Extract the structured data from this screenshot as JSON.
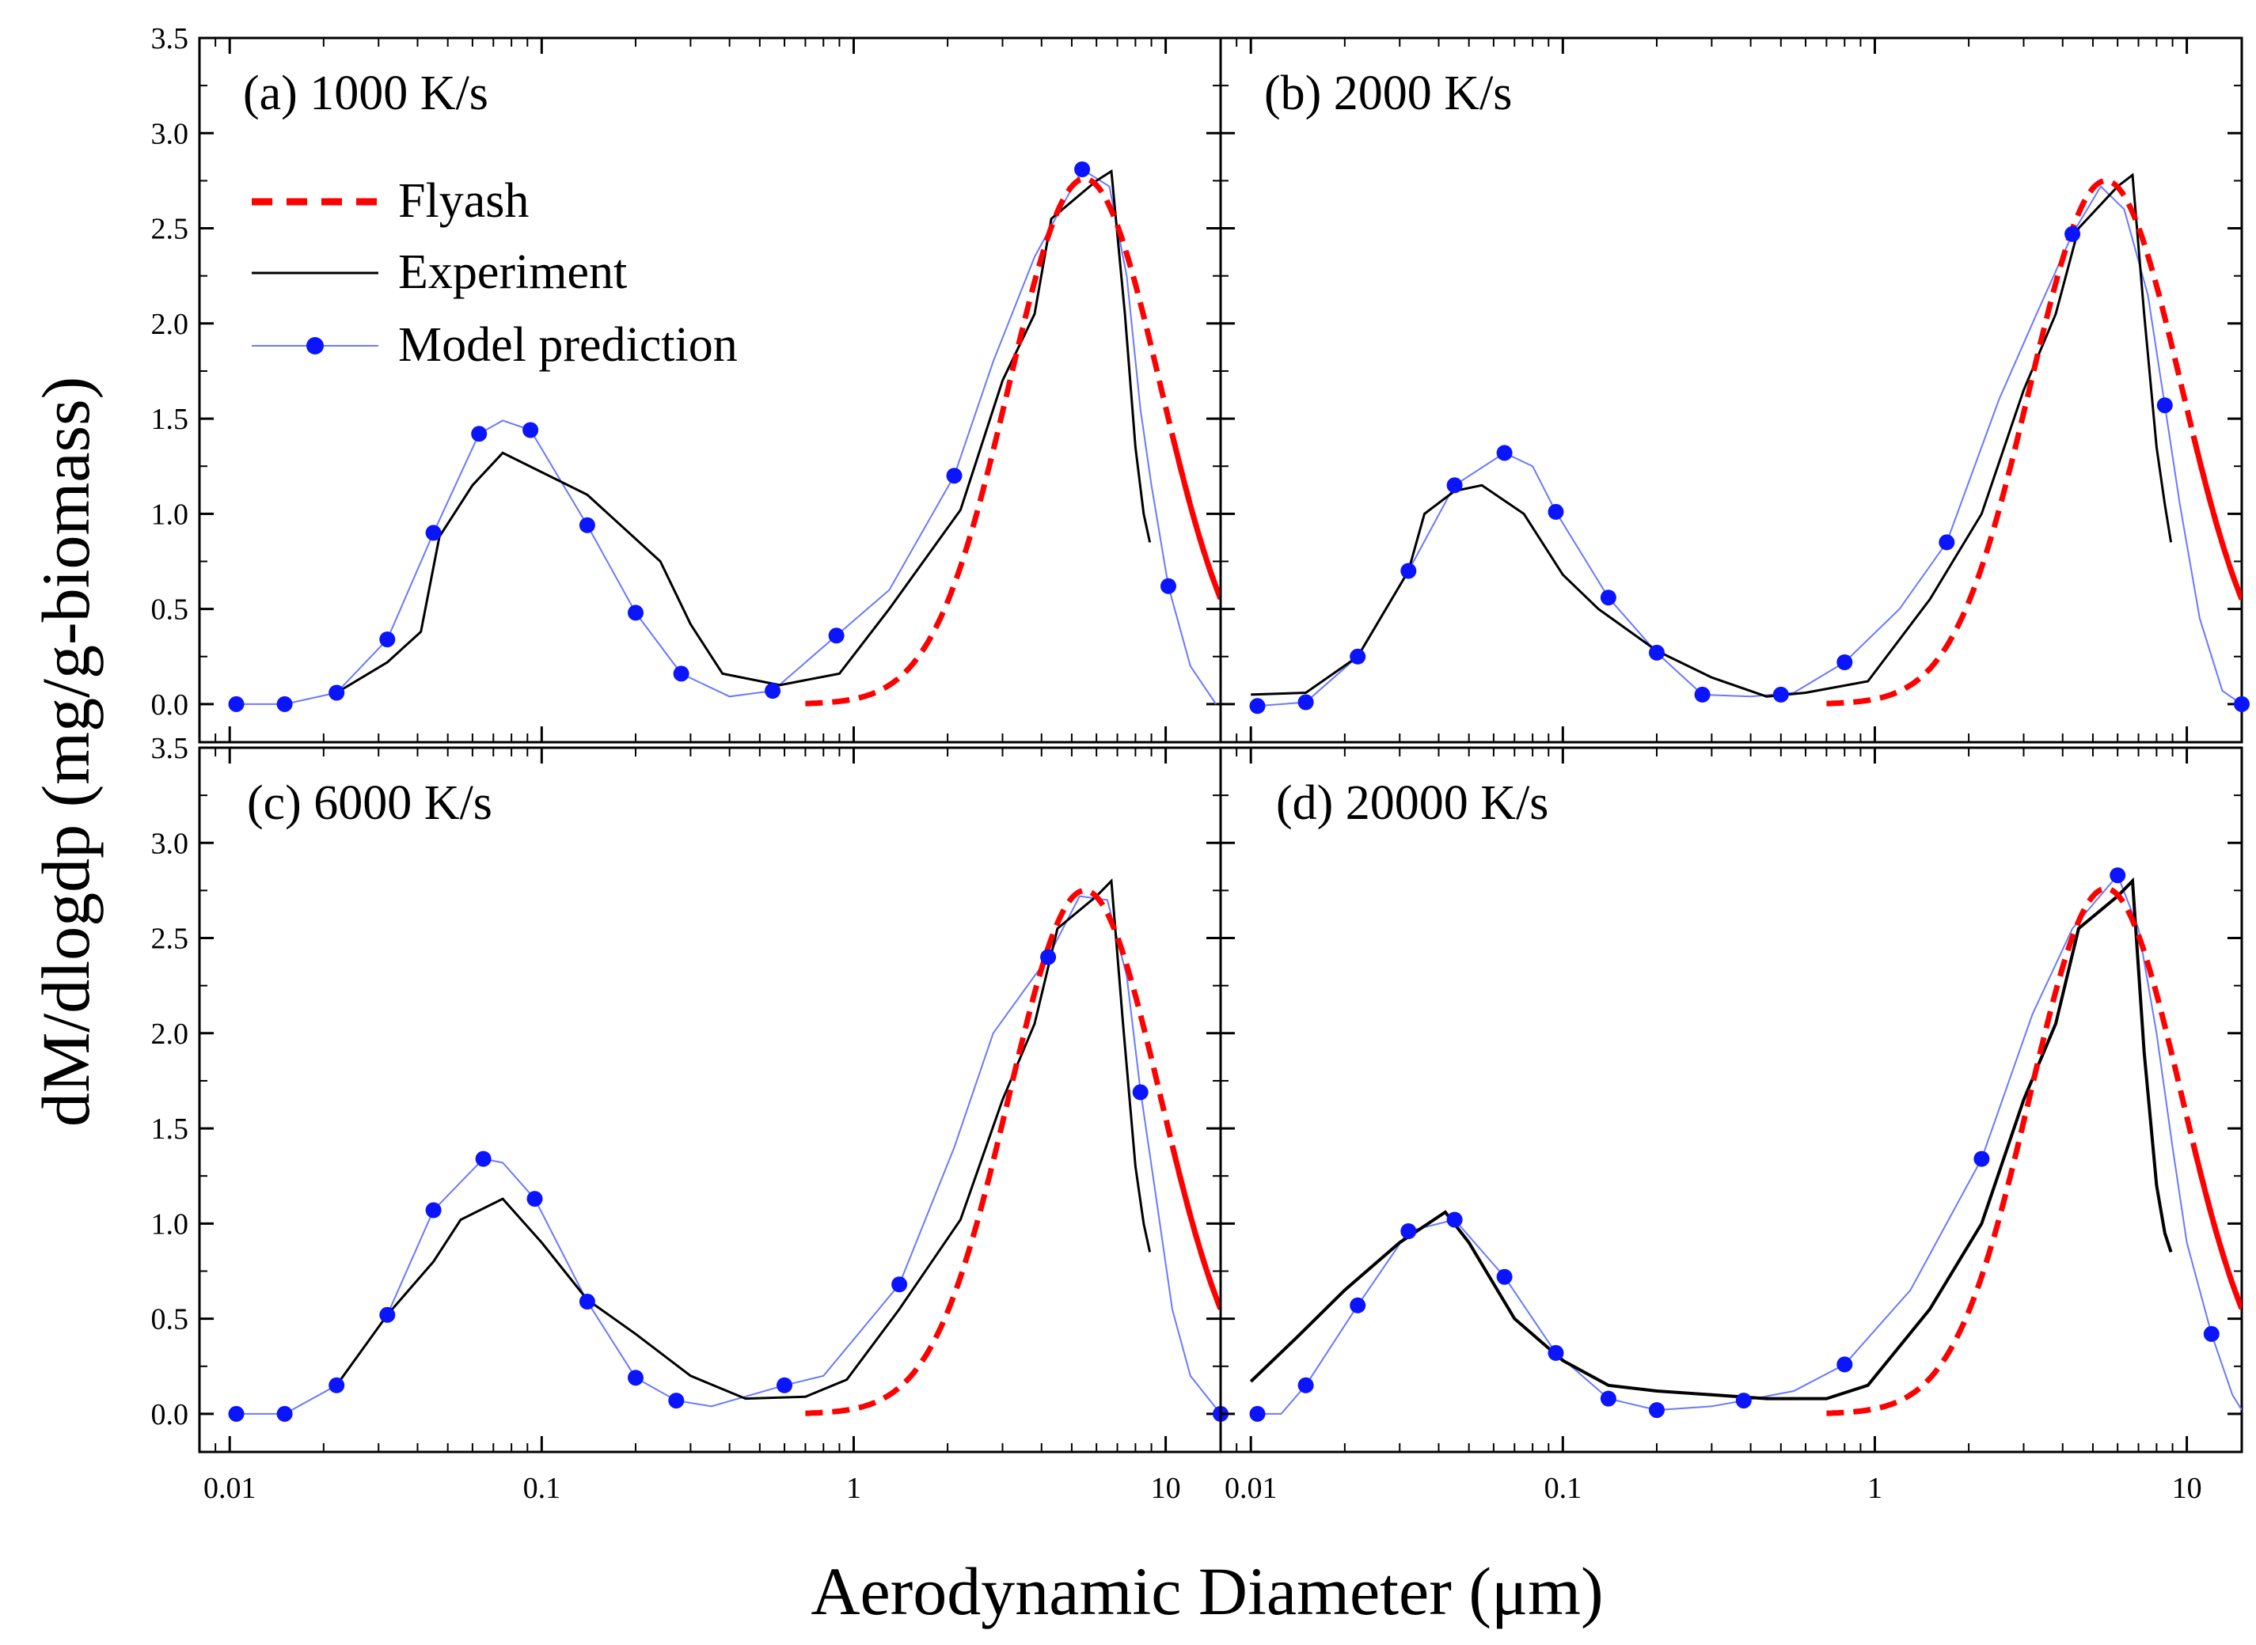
{
  "figure": {
    "xlabel": "Aerodynamic Diameter (μm)",
    "ylabel": "dM/dlogdp (mg/g-biomass)",
    "legend": {
      "location": "top-left of panel (a)",
      "entries": [
        {
          "label": "Flyash",
          "style": "dashed",
          "color": "#ff0000"
        },
        {
          "label": "Experiment",
          "style": "solid",
          "color": "#000000"
        },
        {
          "label": "Model prediction",
          "style": "line+marker",
          "color": "#0000ff"
        }
      ]
    },
    "colors": {
      "flyash": "#ff0000",
      "experiment": "#000000",
      "model_line": "#6a79ff",
      "model_marker": "#0a14ff"
    }
  },
  "chart_data": [
    {
      "type": "line",
      "title": "(a) 1000 K/s",
      "xscale": "log",
      "xlim": [
        0.008,
        15
      ],
      "ylim": [
        -0.2,
        3.5
      ],
      "xticks": [
        0.01,
        0.1,
        1,
        10
      ],
      "xtick_labels": [
        "0.01",
        "0.1",
        "1",
        "10"
      ],
      "yticks": [
        0,
        0.5,
        1,
        1.5,
        2,
        2.5,
        3,
        3.5
      ],
      "ytick_labels": [
        "0.0",
        "0.5",
        "1.0",
        "1.5",
        "2.0",
        "2.5",
        "3.0",
        "3.5"
      ],
      "series": [
        {
          "name": "Experiment",
          "x": [
            0.022,
            0.032,
            0.041,
            0.047,
            0.06,
            0.075,
            0.14,
            0.24,
            0.3,
            0.38,
            0.58,
            0.9,
            1.3,
            2.2,
            3.0,
            3.8,
            4.3,
            6.0,
            6.7,
            7.4,
            8.0,
            8.5,
            8.9
          ],
          "y": [
            0.06,
            0.22,
            0.38,
            0.88,
            1.15,
            1.32,
            1.1,
            0.75,
            0.42,
            0.16,
            0.1,
            0.16,
            0.5,
            1.02,
            1.7,
            2.05,
            2.55,
            2.75,
            2.8,
            2.05,
            1.35,
            1.0,
            0.85
          ]
        },
        {
          "name": "Model prediction",
          "x": [
            0.0105,
            0.015,
            0.022,
            0.032,
            0.045,
            0.063,
            0.075,
            0.092,
            0.14,
            0.2,
            0.28,
            0.4,
            0.55,
            0.88,
            1.3,
            2.1,
            2.8,
            3.8,
            5.4,
            6.6,
            7.5,
            8.3,
            9.0,
            10.2,
            12.0,
            14.5
          ],
          "y": [
            0.0,
            0.0,
            0.06,
            0.34,
            0.9,
            1.42,
            1.49,
            1.44,
            0.94,
            0.48,
            0.16,
            0.04,
            0.07,
            0.36,
            0.6,
            1.2,
            1.8,
            2.35,
            2.81,
            2.72,
            2.25,
            1.55,
            1.15,
            0.62,
            0.2,
            0.0
          ],
          "markers": {
            "x": [
              0.0105,
              0.015,
              0.022,
              0.032,
              0.045,
              0.063,
              0.092,
              0.14,
              0.2,
              0.28,
              0.55,
              0.88,
              2.1,
              5.4,
              10.2
            ],
            "y": [
              0.0,
              0.0,
              0.06,
              0.34,
              0.9,
              1.42,
              1.44,
              0.94,
              0.48,
              0.16,
              0.07,
              0.36,
              1.2,
              2.81,
              0.62
            ]
          }
        },
        {
          "name": "Flyash",
          "mu": 5.5,
          "sigma_g": 1.75,
          "peak": 2.76,
          "x_start": 0.7,
          "x_end": 15
        }
      ]
    },
    {
      "type": "line",
      "title": "(b) 2000 K/s",
      "xscale": "log",
      "xlim": [
        0.008,
        15
      ],
      "ylim": [
        -0.2,
        3.5
      ],
      "xticks": [
        0.01,
        0.1,
        1,
        10
      ],
      "xtick_labels": [
        "0.01",
        "0.1",
        "1",
        "10"
      ],
      "yticks": [
        0,
        0.5,
        1,
        1.5,
        2,
        2.5,
        3,
        3.5
      ],
      "ytick_labels": [
        "0.0",
        "0.5",
        "1.0",
        "1.5",
        "2.0",
        "2.5",
        "3.0",
        "3.5"
      ],
      "series": [
        {
          "name": "Experiment",
          "x": [
            0.01,
            0.015,
            0.022,
            0.032,
            0.036,
            0.045,
            0.055,
            0.075,
            0.1,
            0.13,
            0.2,
            0.3,
            0.45,
            0.6,
            0.95,
            1.5,
            2.2,
            3.0,
            3.8,
            4.5,
            6.0,
            6.7,
            7.3,
            8.0,
            8.5,
            8.9
          ],
          "y": [
            0.05,
            0.06,
            0.25,
            0.7,
            1.0,
            1.12,
            1.15,
            1.0,
            0.68,
            0.5,
            0.28,
            0.14,
            0.04,
            0.06,
            0.12,
            0.55,
            1.0,
            1.65,
            2.05,
            2.5,
            2.72,
            2.78,
            2.05,
            1.35,
            1.05,
            0.85
          ]
        },
        {
          "name": "Model prediction",
          "x": [
            0.0105,
            0.015,
            0.022,
            0.032,
            0.045,
            0.065,
            0.08,
            0.095,
            0.14,
            0.2,
            0.28,
            0.4,
            0.55,
            0.8,
            1.2,
            1.7,
            2.5,
            3.3,
            4.3,
            5.3,
            6.3,
            7.5,
            8.5,
            9.5,
            11.0,
            13.0,
            15.0
          ],
          "y": [
            -0.01,
            0.01,
            0.25,
            0.7,
            1.15,
            1.32,
            1.25,
            1.01,
            0.56,
            0.27,
            0.05,
            0.04,
            0.06,
            0.22,
            0.5,
            0.85,
            1.6,
            2.05,
            2.47,
            2.72,
            2.6,
            2.15,
            1.57,
            1.05,
            0.45,
            0.07,
            0.0
          ],
          "markers": {
            "x": [
              0.0105,
              0.015,
              0.022,
              0.032,
              0.045,
              0.065,
              0.095,
              0.14,
              0.2,
              0.28,
              0.5,
              0.8,
              1.7,
              4.3,
              8.5,
              15.0
            ],
            "y": [
              -0.01,
              0.01,
              0.25,
              0.7,
              1.15,
              1.32,
              1.01,
              0.56,
              0.27,
              0.05,
              0.05,
              0.22,
              0.85,
              2.47,
              1.57,
              0.0
            ]
          }
        },
        {
          "name": "Flyash",
          "mu": 5.5,
          "sigma_g": 1.75,
          "peak": 2.75,
          "x_start": 0.7,
          "x_end": 15
        }
      ]
    },
    {
      "type": "line",
      "title": "(c) 6000 K/s",
      "xscale": "log",
      "xlim": [
        0.008,
        15
      ],
      "ylim": [
        -0.2,
        3.5
      ],
      "xticks": [
        0.01,
        0.1,
        1,
        10
      ],
      "xtick_labels": [
        "0.01",
        "0.1",
        "1",
        "10"
      ],
      "yticks": [
        0,
        0.5,
        1,
        1.5,
        2,
        2.5,
        3,
        3.5
      ],
      "ytick_labels": [
        "0.0",
        "0.5",
        "1.0",
        "1.5",
        "2.0",
        "2.5",
        "3.0",
        "3.5"
      ],
      "series": [
        {
          "name": "Experiment",
          "x": [
            0.022,
            0.032,
            0.045,
            0.055,
            0.075,
            0.1,
            0.14,
            0.2,
            0.3,
            0.45,
            0.7,
            0.95,
            1.4,
            2.2,
            3.0,
            3.8,
            4.5,
            6.0,
            6.7,
            7.3,
            8.0,
            8.5,
            8.9
          ],
          "y": [
            0.15,
            0.52,
            0.8,
            1.02,
            1.13,
            0.9,
            0.6,
            0.42,
            0.2,
            0.08,
            0.09,
            0.18,
            0.55,
            1.02,
            1.65,
            2.05,
            2.55,
            2.72,
            2.8,
            2.05,
            1.3,
            1.0,
            0.85
          ]
        },
        {
          "name": "Model prediction",
          "x": [
            0.0105,
            0.015,
            0.022,
            0.032,
            0.045,
            0.065,
            0.075,
            0.095,
            0.14,
            0.2,
            0.27,
            0.35,
            0.6,
            0.8,
            1.4,
            2.1,
            2.8,
            4.2,
            5.3,
            6.5,
            7.5,
            8.3,
            9.2,
            10.5,
            12.0,
            15.0
          ],
          "y": [
            0.0,
            0.0,
            0.15,
            0.52,
            1.07,
            1.34,
            1.32,
            1.13,
            0.59,
            0.19,
            0.07,
            0.04,
            0.15,
            0.2,
            0.68,
            1.4,
            2.0,
            2.4,
            2.72,
            2.7,
            2.3,
            1.7,
            1.2,
            0.55,
            0.2,
            0.0
          ],
          "markers": {
            "x": [
              0.0105,
              0.015,
              0.022,
              0.032,
              0.045,
              0.065,
              0.095,
              0.14,
              0.2,
              0.27,
              0.6,
              1.4,
              4.2,
              8.3,
              15.0
            ],
            "y": [
              0.0,
              0.0,
              0.15,
              0.52,
              1.07,
              1.34,
              1.13,
              0.59,
              0.19,
              0.07,
              0.15,
              0.68,
              2.4,
              1.69,
              0.0
            ]
          }
        },
        {
          "name": "Flyash",
          "mu": 5.5,
          "sigma_g": 1.75,
          "peak": 2.75,
          "x_start": 0.7,
          "x_end": 15
        }
      ]
    },
    {
      "type": "line",
      "title": "(d) 20000 K/s",
      "xscale": "log",
      "xlim": [
        0.008,
        15
      ],
      "ylim": [
        -0.2,
        3.5
      ],
      "xticks": [
        0.01,
        0.1,
        1,
        10
      ],
      "xtick_labels": [
        "0.01",
        "0.1",
        "1",
        "10"
      ],
      "yticks": [
        0,
        0.5,
        1,
        1.5,
        2,
        2.5,
        3,
        3.5
      ],
      "ytick_labels": [
        "0.0",
        "0.5",
        "1.0",
        "1.5",
        "2.0",
        "2.5",
        "3.0",
        "3.5"
      ],
      "series": [
        {
          "name": "Experiment",
          "x": [
            0.01,
            0.014,
            0.02,
            0.03,
            0.042,
            0.05,
            0.07,
            0.1,
            0.14,
            0.2,
            0.3,
            0.45,
            0.7,
            0.95,
            1.5,
            2.2,
            3.0,
            3.8,
            4.5,
            6.0,
            6.7,
            7.3,
            8.0,
            8.5,
            8.9
          ],
          "y": [
            0.17,
            0.4,
            0.65,
            0.9,
            1.06,
            0.9,
            0.5,
            0.28,
            0.15,
            0.12,
            0.1,
            0.08,
            0.08,
            0.15,
            0.55,
            1.0,
            1.65,
            2.05,
            2.55,
            2.72,
            2.8,
            1.9,
            1.2,
            0.95,
            0.85
          ]
        },
        {
          "name": "Model prediction",
          "x": [
            0.0105,
            0.0125,
            0.015,
            0.022,
            0.032,
            0.045,
            0.065,
            0.095,
            0.14,
            0.2,
            0.3,
            0.38,
            0.55,
            0.8,
            1.3,
            2.2,
            3.2,
            4.3,
            6.0,
            7.0,
            8.0,
            9.0,
            10.0,
            12.0,
            14.0,
            15.0
          ],
          "y": [
            0.0,
            0.0,
            0.15,
            0.57,
            0.96,
            1.02,
            0.72,
            0.32,
            0.08,
            0.02,
            0.04,
            0.07,
            0.12,
            0.26,
            0.65,
            1.34,
            2.1,
            2.55,
            2.83,
            2.55,
            2.0,
            1.4,
            0.9,
            0.42,
            0.1,
            0.02
          ],
          "markers": {
            "x": [
              0.0105,
              0.015,
              0.022,
              0.032,
              0.045,
              0.065,
              0.095,
              0.14,
              0.2,
              0.38,
              0.8,
              2.2,
              6.0,
              12.0
            ],
            "y": [
              0.0,
              0.15,
              0.57,
              0.96,
              1.02,
              0.72,
              0.32,
              0.08,
              0.02,
              0.07,
              0.26,
              1.34,
              2.83,
              0.42
            ]
          }
        },
        {
          "name": "Flyash",
          "mu": 5.5,
          "sigma_g": 1.75,
          "peak": 2.76,
          "x_start": 0.7,
          "x_end": 15
        }
      ]
    }
  ]
}
